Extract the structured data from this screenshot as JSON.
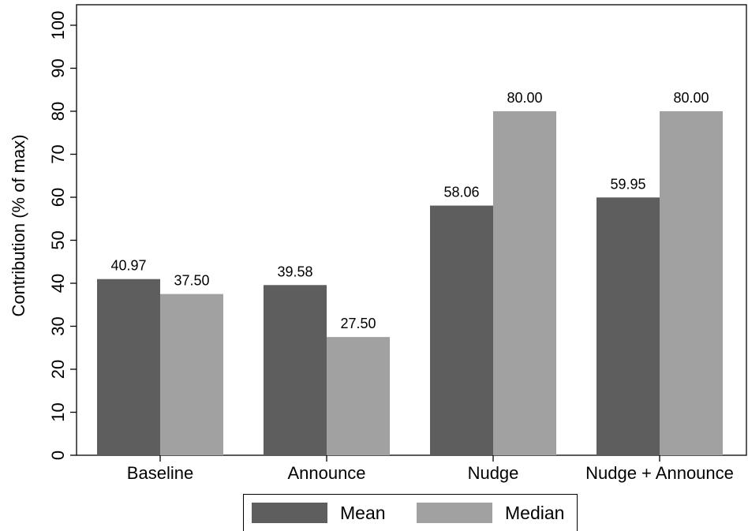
{
  "chart_data": {
    "type": "bar",
    "categories": [
      "Baseline",
      "Announce",
      "Nudge",
      "Nudge + Announce"
    ],
    "series": [
      {
        "name": "Mean",
        "values": [
          40.97,
          39.58,
          58.06,
          59.95
        ],
        "labels": [
          "40.97",
          "39.58",
          "58.06",
          "59.95"
        ],
        "color": "#5e5e5e"
      },
      {
        "name": "Median",
        "values": [
          37.5,
          27.5,
          80.0,
          80.0
        ],
        "labels": [
          "37.50",
          "27.50",
          "80.00",
          "80.00"
        ],
        "color": "#a1a1a1"
      }
    ],
    "ylabel": "Contribution (% of max)",
    "xlabel": "",
    "ylim": [
      0,
      100
    ],
    "yticks": [
      "0",
      "10",
      "20",
      "30",
      "40",
      "50",
      "60",
      "70",
      "80",
      "90",
      "100"
    ],
    "grid": false,
    "legend_position": "bottom"
  }
}
